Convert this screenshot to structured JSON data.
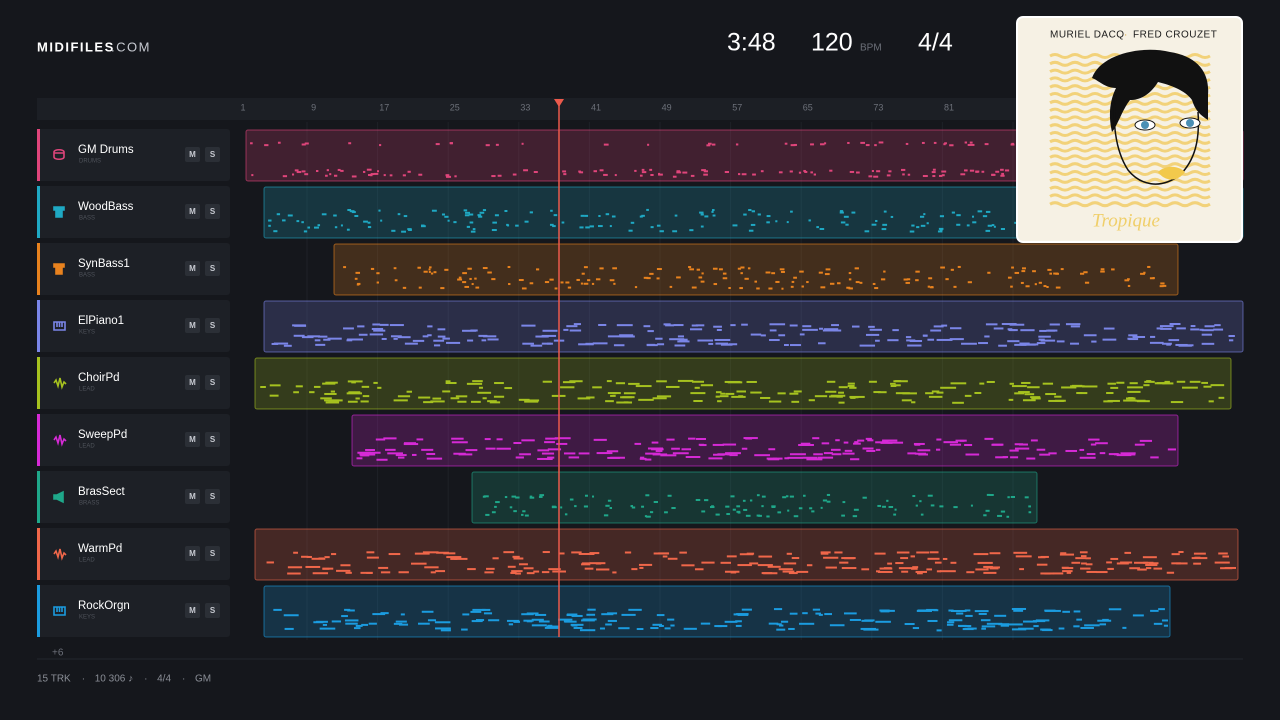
{
  "header": {
    "brand": "MIDIFILES",
    "brand_suffix": ".COM",
    "time": "3:48",
    "tempo": "120",
    "tempo_unit": "BPM",
    "meter": "4/4"
  },
  "album": {
    "artists": [
      "MURIEL DACQ",
      "FRED CROUZET"
    ],
    "artist_separator": "·",
    "title": "Tropique"
  },
  "ruler": [
    "1",
    "9",
    "17",
    "25",
    "33",
    "41",
    "49",
    "57",
    "65",
    "73",
    "81"
  ],
  "buttons": {
    "mute": "M",
    "solo": "S"
  },
  "tracks": [
    {
      "name": "GM Drums",
      "category": "DRUMS",
      "color": "#e0457b"
    },
    {
      "name": "WoodBass",
      "category": "BASS",
      "color": "#1fa9c4"
    },
    {
      "name": "SynBass1",
      "category": "BASS",
      "color": "#e8821e"
    },
    {
      "name": "ElPiano1",
      "category": "KEYS",
      "color": "#7b86e8"
    },
    {
      "name": "ChoirPd",
      "category": "LEAD",
      "color": "#a6c21f"
    },
    {
      "name": "SweepPd",
      "category": "LEAD",
      "color": "#d62ad6"
    },
    {
      "name": "BrasSect",
      "category": "BRASS",
      "color": "#1fa88a"
    },
    {
      "name": "WarmPd",
      "category": "LEAD",
      "color": "#f0674a"
    },
    {
      "name": "RockOrgn",
      "category": "KEYS",
      "color": "#1b9ce0"
    }
  ],
  "more_tracks": "+6",
  "footer": {
    "stats": [
      "15 TRK",
      "10 306 ♪",
      "4/4",
      "GM"
    ],
    "separator": "·"
  }
}
